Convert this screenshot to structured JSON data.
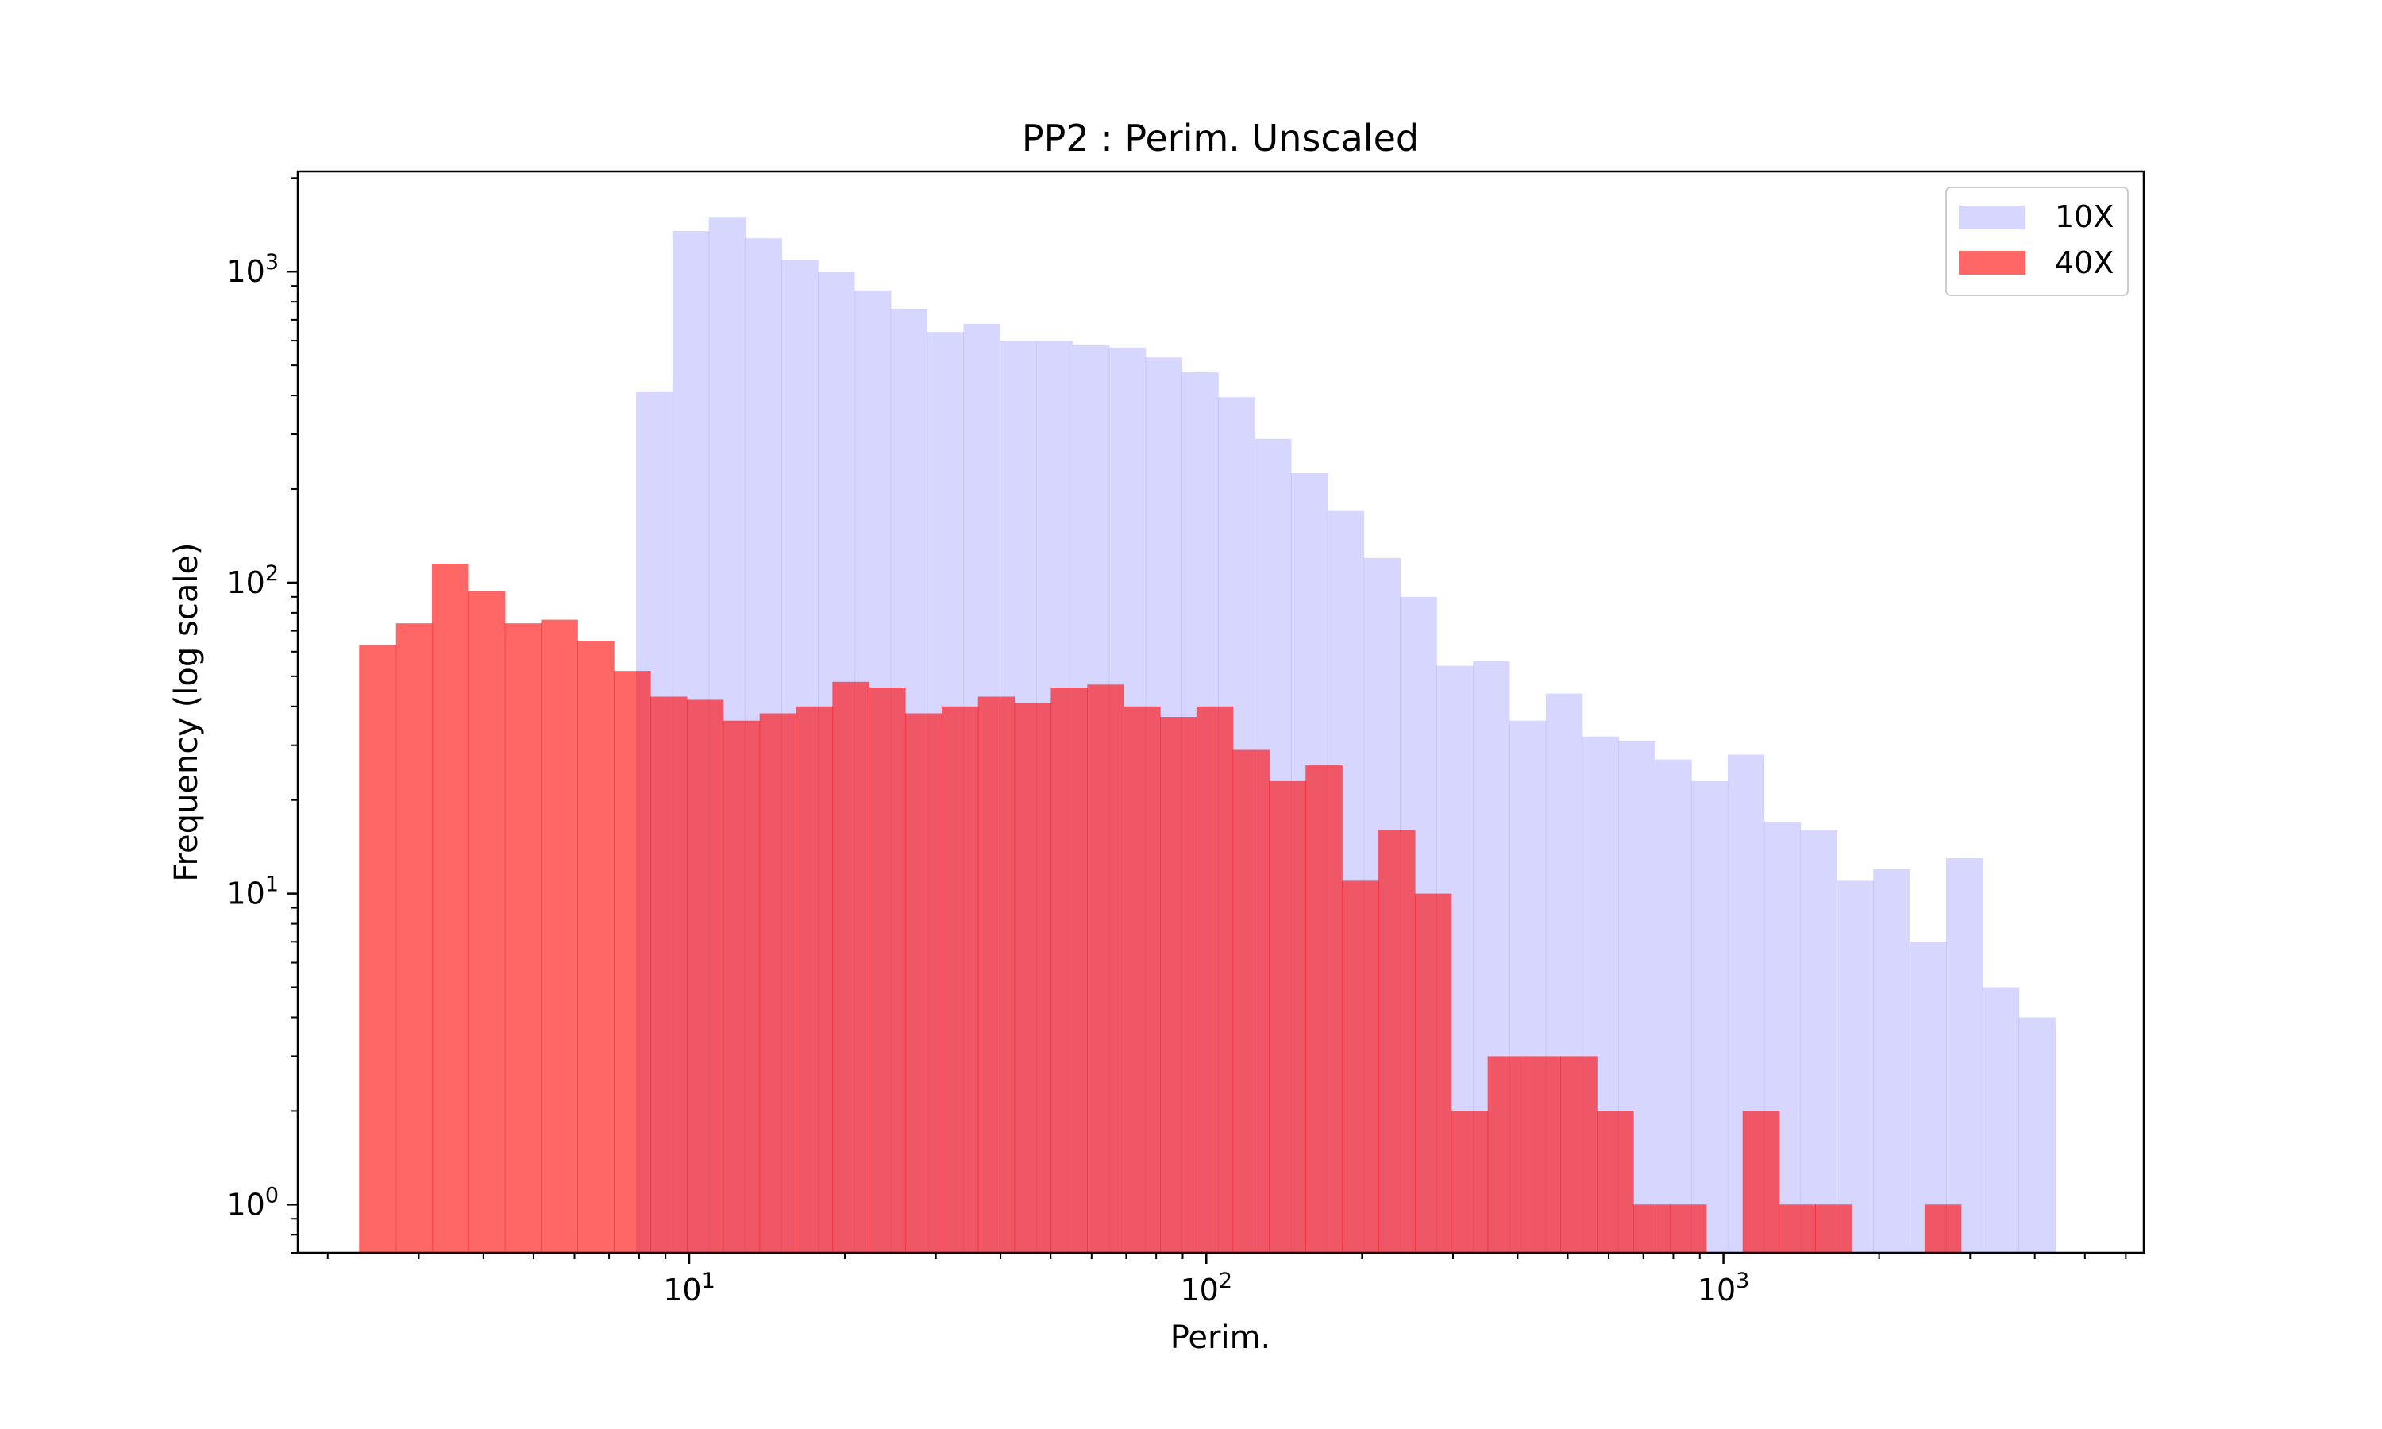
{
  "chart_data": {
    "type": "bar",
    "title": "PP2 : Perim. Unscaled",
    "xlabel": "Perim.",
    "ylabel": "Frequency (log scale)",
    "xscale": "log",
    "yscale": "log",
    "xlim": [
      1.75,
      6500
    ],
    "ylim": [
      0.7,
      2100
    ],
    "x_ticks": [
      {
        "value": 10,
        "base": "10",
        "exp": "1"
      },
      {
        "value": 100,
        "base": "10",
        "exp": "2"
      },
      {
        "value": 1000,
        "base": "10",
        "exp": "3"
      }
    ],
    "y_ticks": [
      {
        "value": 1,
        "base": "10",
        "exp": "0"
      },
      {
        "value": 10,
        "base": "10",
        "exp": "1"
      },
      {
        "value": 100,
        "base": "10",
        "exp": "2"
      },
      {
        "value": 1000,
        "base": "10",
        "exp": "3"
      }
    ],
    "grid": false,
    "legend_position": "top-right",
    "series": [
      {
        "name": "10X",
        "color": "#9999ff",
        "bin_edges": [
          7.89,
          9.28,
          10.91,
          12.83,
          15.09,
          17.74,
          20.86,
          24.53,
          28.84,
          33.92,
          39.88,
          46.9,
          55.15,
          64.85,
          76.26,
          89.67,
          105.4,
          124.0,
          145.8,
          171.5,
          201.6,
          237.1,
          278.8,
          327.8,
          385.5,
          453.3,
          533.1,
          626.8,
          737.1,
          866.7,
          1019,
          1198,
          1409,
          1657,
          1949,
          2292,
          2695,
          3169,
          3726,
          4382
        ],
        "values": [
          410,
          1350,
          1500,
          1280,
          1090,
          1000,
          870,
          760,
          640,
          680,
          600,
          600,
          580,
          570,
          530,
          475,
          395,
          290,
          225,
          170,
          120,
          90,
          54,
          56,
          36,
          44,
          32,
          31,
          27,
          23,
          28,
          17,
          16,
          11,
          12,
          7,
          13,
          5,
          4,
          1
        ]
      },
      {
        "name": "40X",
        "color": "#ff0000",
        "bin_edges": [
          2.3,
          2.71,
          3.18,
          3.74,
          4.4,
          5.17,
          6.08,
          7.15,
          8.41,
          9.89,
          11.63,
          13.68,
          16.09,
          18.92,
          22.25,
          26.16,
          30.77,
          36.18,
          42.55,
          50.04,
          58.85,
          69.2,
          81.38,
          95.7,
          112.5,
          132.3,
          155.6,
          183.0,
          215.2,
          253.1,
          297.6,
          350.0,
          411.6,
          484.0,
          569.2,
          669.4,
          787.2,
          925.7,
          1089,
          1281,
          1506,
          1771,
          2082,
          2449,
          2880
        ],
        "values": [
          63,
          74,
          115,
          94,
          74,
          76,
          65,
          52,
          43,
          42,
          36,
          38,
          40,
          48,
          46,
          38,
          40,
          43,
          41,
          46,
          47,
          40,
          37,
          40,
          29,
          23,
          26,
          11,
          16,
          10,
          2,
          3,
          3,
          3,
          2,
          1,
          1,
          0,
          2,
          1,
          1,
          0,
          0,
          1,
          1
        ]
      }
    ]
  }
}
